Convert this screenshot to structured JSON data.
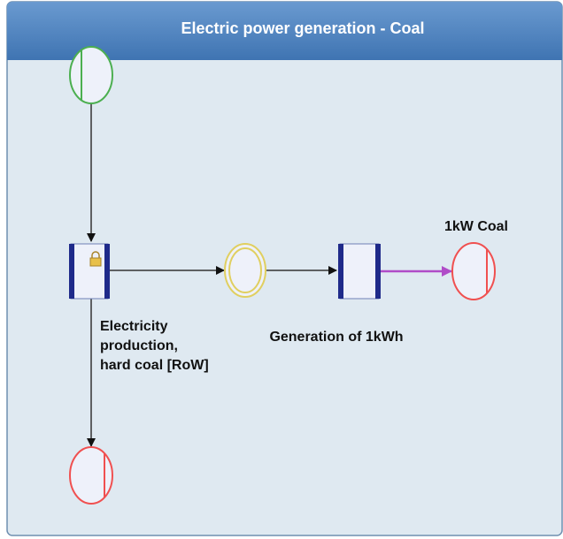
{
  "header": {
    "title": "Electric power generation - Coal"
  },
  "nodes": [
    {
      "label_lines": [
        "Electricity",
        "production,",
        "hard coal [RoW]"
      ]
    },
    {
      "label": "Generation of 1kWh"
    },
    {
      "label": "1kW Coal"
    }
  ]
}
